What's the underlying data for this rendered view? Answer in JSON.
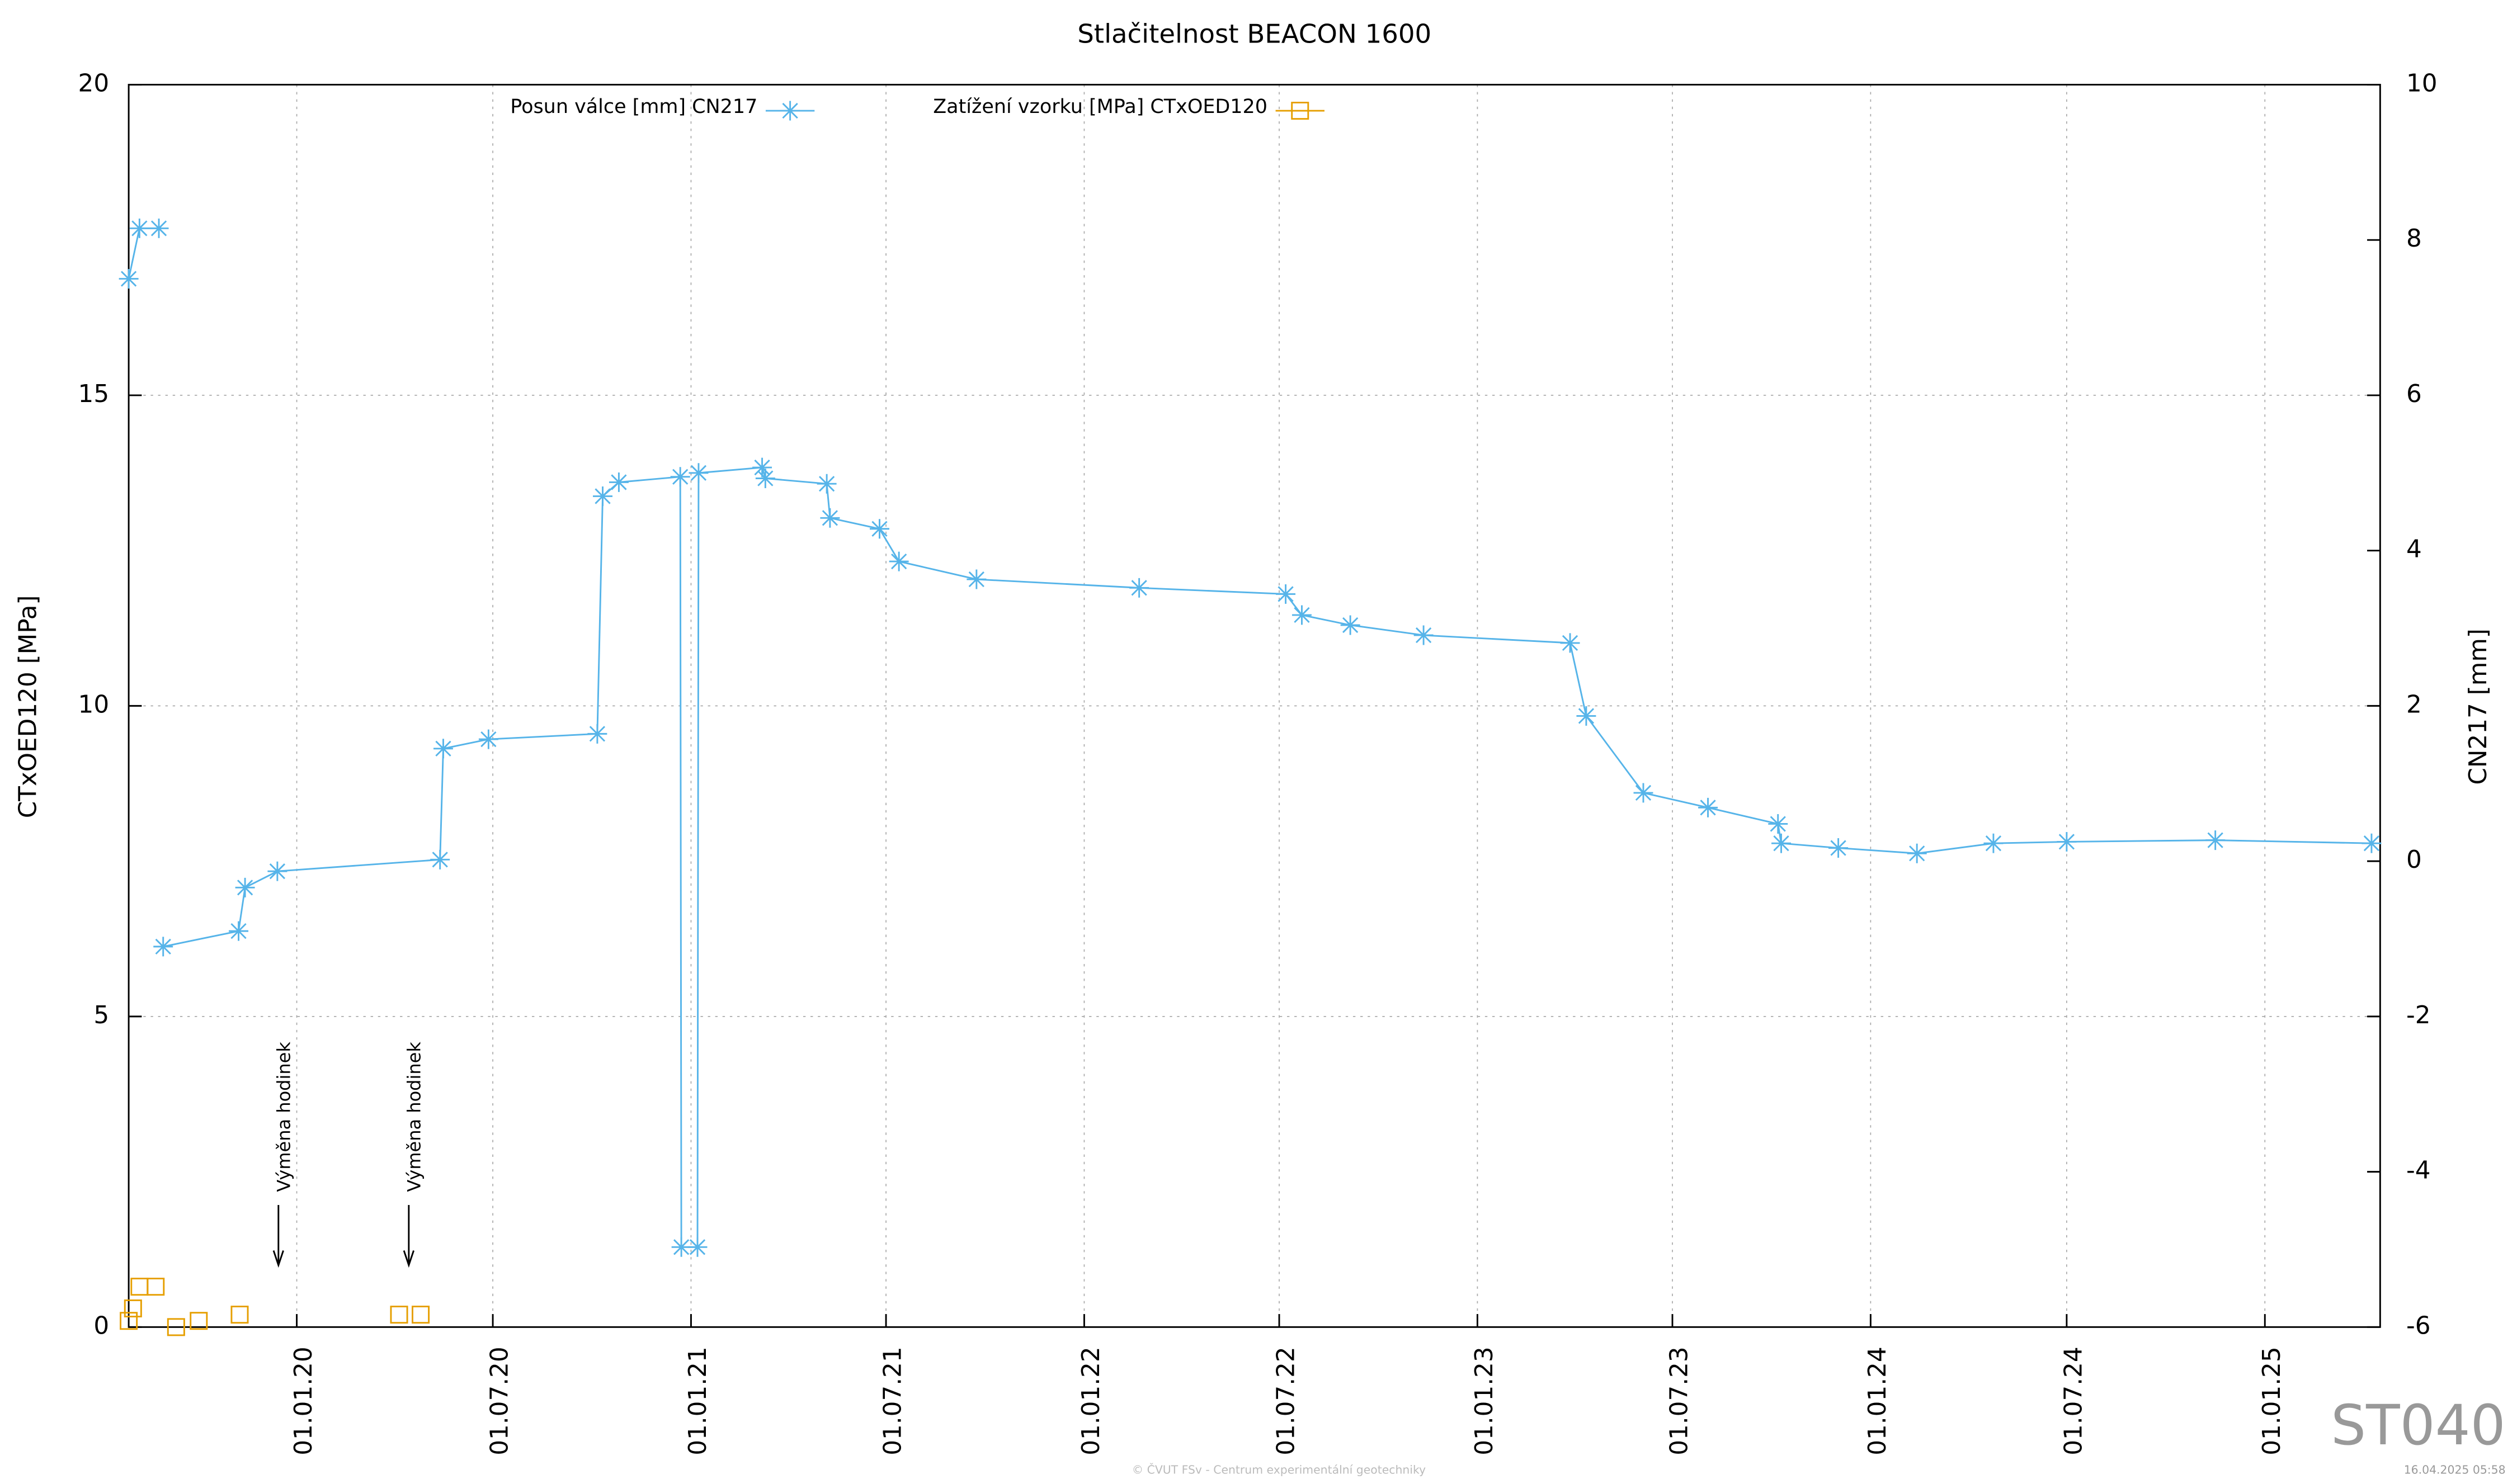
{
  "chart_data": {
    "type": "line",
    "title": "Stlačitelnost BEACON 1600",
    "ylabel": "CTxOED120 [MPa]",
    "y2label": "CN217 [mm]",
    "xlim": [
      "29.07.19",
      "18.04.25"
    ],
    "xticks": [
      "01.01.20",
      "01.07.20",
      "01.01.21",
      "01.07.21",
      "01.01.22",
      "01.07.22",
      "01.01.23",
      "01.07.23",
      "01.01.24",
      "01.07.24",
      "01.01.25"
    ],
    "ylim": [
      0,
      20
    ],
    "yticks": [
      0,
      5,
      10,
      15,
      20
    ],
    "y2lim": [
      -6,
      10
    ],
    "y2ticks": [
      -6,
      -4,
      -2,
      0,
      2,
      4,
      6,
      8,
      10
    ],
    "grid": true,
    "legend": "top",
    "series": [
      {
        "name": "Posun válce [mm] CN217",
        "color": "#56b4e9",
        "axis": "y2",
        "style": "line-star",
        "x": [
          "29.07.19",
          "08.08.19",
          "26.08.19",
          "27.08.19",
          "30.08.19",
          "08.11.19",
          "14.11.19",
          "14.12.19",
          "13.05.20",
          "16.05.20",
          "27.06.20",
          "06.10.20",
          "11.10.20",
          "26.10.20",
          "22.12.20",
          "23.12.20",
          "07.01.21",
          "08.01.21",
          "08.03.21",
          "11.03.21",
          "07.05.21",
          "10.05.21",
          "25.06.21",
          "13.07.21",
          "23.09.21",
          "21.02.22",
          "07.07.22",
          "22.07.22",
          "05.09.22",
          "12.11.22",
          "28.03.23",
          "12.04.23",
          "04.06.23",
          "03.08.23",
          "07.10.23",
          "10.10.23",
          "02.12.23",
          "13.02.24",
          "24.04.24",
          "01.07.24",
          "16.11.24",
          "10.04.25"
        ],
        "values": [
          7.5,
          8.15,
          8.15,
          null,
          -1.1,
          -0.9,
          -0.34,
          -0.13,
          0.02,
          1.45,
          1.57,
          1.64,
          4.7,
          4.88,
          4.95,
          -4.97,
          -4.97,
          5.0,
          5.07,
          4.93,
          4.86,
          4.42,
          4.28,
          3.86,
          3.63,
          3.52,
          3.44,
          3.17,
          3.04,
          2.91,
          2.81,
          1.87,
          0.88,
          0.69,
          0.48,
          0.23,
          0.17,
          0.1,
          0.23,
          0.25,
          0.27,
          0.23
        ]
      },
      {
        "name": "Zatížení vzorku [MPa] CTxOED120",
        "color": "#e69f00",
        "axis": "y",
        "style": "square",
        "x": [
          "29.07.19",
          "02.08.19",
          "08.08.19",
          "23.08.19",
          "11.09.19",
          "02.10.19",
          "09.11.19",
          "05.04.20",
          "25.04.20"
        ],
        "values": [
          0.1,
          0.3,
          0.65,
          0.65,
          0,
          0.1,
          0.2,
          0.2,
          0.2
        ]
      }
    ],
    "annotations": [
      {
        "text": "Výměna hodinek",
        "x": "15.12.19"
      },
      {
        "text": "Výměna hodinek",
        "x": "14.04.20"
      }
    ],
    "footer": "© ČVUT FSv - Centrum experimentální geotechniky",
    "timestamp": "16.04.2025 05:58",
    "watermark": "ST040"
  }
}
